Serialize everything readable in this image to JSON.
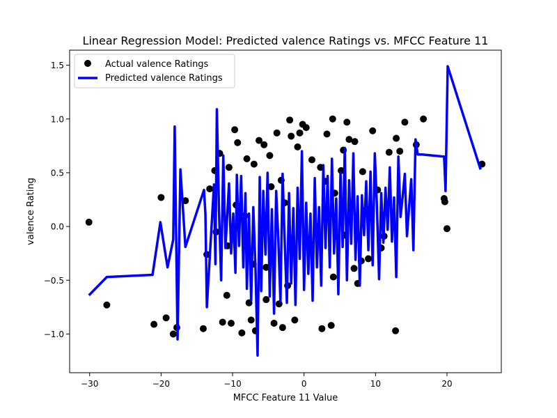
{
  "chart_data": {
    "type": "scatter",
    "title": "Linear Regression Model: Predicted valence Ratings vs. MFCC Feature 11",
    "xlabel": "MFCC Feature 11 Value",
    "ylabel": "valence Rating",
    "xlim": [
      -32.8,
      27.6
    ],
    "ylim": [
      -1.36,
      1.64
    ],
    "xticks": [
      -30,
      -20,
      -10,
      0,
      10,
      20
    ],
    "yticks": [
      -1.0,
      -0.5,
      0.0,
      0.5,
      1.0,
      1.5
    ],
    "xtick_labels": [
      "−30",
      "−20",
      "−10",
      "0",
      "10",
      "20"
    ],
    "ytick_labels": [
      "−1.0",
      "−0.5",
      "0.0",
      "0.5",
      "1.0",
      "1.5"
    ],
    "grid": false,
    "legend_position": "top-left",
    "legend": [
      "Actual valence Ratings",
      "Predicted valence Ratings"
    ],
    "colors": {
      "actual": "#000000",
      "predicted": "#0000ff"
    },
    "series": [
      {
        "name": "Actual valence Ratings",
        "kind": "scatter",
        "x": [
          -30.1,
          -27.6,
          -20.0,
          -21.0,
          -19.3,
          -18.3,
          -17.8,
          -16.6,
          -14.1,
          -13.6,
          -12.5,
          -12.3,
          -11.8,
          -11.4,
          -10.7,
          -10.5,
          -10.2,
          -9.7,
          -9.3,
          -8.7,
          -8.3,
          -8.0,
          -7.7,
          -7.4,
          -7.1,
          -6.8,
          -6.3,
          -5.6,
          -5.3,
          -4.6,
          -4.2,
          -3.8,
          -3.5,
          -3.0,
          -2.7,
          -2.3,
          -1.8,
          -1.3,
          -0.9,
          -0.6,
          -0.2,
          0.3,
          0.7,
          1.1,
          1.8,
          2.3,
          3.2,
          3.8,
          4.0,
          4.3,
          5.2,
          5.7,
          6.3,
          7.0,
          7.1,
          7.5,
          8.2,
          8.8,
          9.6,
          10.3,
          11.2,
          11.9,
          12.8,
          13.4,
          14.1,
          15.7,
          16.7,
          19.6,
          19.7,
          20.0,
          24.9,
          -5.3,
          -2.0,
          2.5,
          6.0,
          9.0,
          -13.2,
          -9.5,
          -7.0,
          3.0,
          12.9,
          4.1,
          -10.8,
          1.0,
          -4.8,
          5.5,
          -1.4,
          8.0,
          -3.2,
          10.8
        ],
        "y": [
          0.04,
          -0.73,
          0.27,
          -0.91,
          -0.85,
          -1.0,
          -0.94,
          0.24,
          -0.95,
          -0.26,
          0.52,
          -0.05,
          0.68,
          -0.89,
          -0.18,
          0.55,
          -0.9,
          0.9,
          0.78,
          -0.99,
          0.1,
          0.63,
          -0.71,
          -0.87,
          -0.35,
          -0.97,
          0.8,
          0.76,
          -0.68,
          0.37,
          -0.9,
          0.87,
          -0.72,
          -0.94,
          0.22,
          -0.55,
          0.84,
          -0.87,
          0.74,
          0.87,
          0.95,
          0.92,
          -0.14,
          0.62,
          0.0,
          0.55,
          0.86,
          -0.92,
          1.0,
          0.31,
          0.52,
          -0.08,
          0.81,
          -0.39,
          0.79,
          -0.53,
          0.51,
          0.16,
          0.89,
          0.34,
          -0.09,
          0.69,
          -0.97,
          0.7,
          0.97,
          0.76,
          1.0,
          0.26,
          0.23,
          -0.02,
          0.58,
          -0.38,
          0.99,
          -0.95,
          0.97,
          -0.3,
          0.35,
          0.2,
          0.58,
          0.42,
          0.82,
          -0.47,
          -0.64,
          -0.17,
          0.66,
          0.71,
          -0.25,
          -0.32,
          0.43,
          -0.2
        ]
      },
      {
        "name": "Predicted valence Ratings",
        "kind": "line",
        "x": [
          -30.1,
          -27.6,
          -21.2,
          -20.1,
          -19.1,
          -18.3,
          -18.1,
          -17.7,
          -17.3,
          -16.6,
          -14.0,
          -13.8,
          -13.6,
          -12.6,
          -12.4,
          -12.2,
          -11.9,
          -11.6,
          -11.3,
          -11.0,
          -10.5,
          -10.2,
          -9.9,
          -9.6,
          -9.4,
          -9.1,
          -8.8,
          -8.5,
          -8.2,
          -8.0,
          -7.7,
          -7.4,
          -7.1,
          -6.8,
          -6.5,
          -6.2,
          -6.0,
          -5.7,
          -5.4,
          -5.1,
          -4.8,
          -4.5,
          -4.2,
          -3.9,
          -3.6,
          -3.3,
          -3.0,
          -2.7,
          -2.4,
          -2.1,
          -1.8,
          -1.5,
          -1.2,
          -0.9,
          -0.6,
          -0.3,
          0.0,
          0.3,
          0.6,
          0.9,
          1.2,
          1.5,
          1.8,
          2.1,
          2.4,
          2.7,
          3.0,
          3.3,
          3.6,
          3.9,
          4.2,
          4.5,
          4.8,
          5.1,
          5.4,
          5.7,
          6.0,
          6.3,
          6.6,
          6.9,
          7.2,
          7.5,
          7.8,
          8.1,
          8.4,
          8.7,
          9.0,
          9.3,
          9.6,
          9.9,
          10.2,
          10.5,
          10.8,
          11.1,
          11.4,
          11.7,
          12.0,
          12.3,
          12.6,
          12.9,
          13.2,
          13.5,
          13.8,
          14.1,
          14.4,
          14.7,
          15.0,
          15.3,
          15.6,
          15.9,
          16.2,
          16.5,
          19.6,
          19.8,
          20.1,
          24.7
        ],
        "y": [
          -0.64,
          -0.47,
          -0.45,
          0.04,
          -0.38,
          -0.12,
          0.93,
          -1.05,
          0.53,
          -0.19,
          0.34,
          0.12,
          -0.75,
          0.39,
          -0.35,
          1.09,
          0.15,
          -0.5,
          0.66,
          -0.2,
          0.4,
          -0.25,
          0.12,
          -0.43,
          0.48,
          -0.18,
          0.47,
          -0.38,
          0.31,
          -0.58,
          0.12,
          -0.69,
          0.18,
          -0.38,
          -1.2,
          0.46,
          -0.6,
          0.33,
          -0.26,
          0.5,
          -0.65,
          0.16,
          -0.81,
          0.33,
          -0.12,
          -0.7,
          0.49,
          -0.15,
          -0.71,
          0.31,
          -0.53,
          0.17,
          -0.73,
          0.36,
          -0.3,
          0.7,
          -0.59,
          0.22,
          -0.44,
          0.12,
          -0.69,
          0.45,
          -0.38,
          0.18,
          -0.55,
          0.57,
          -0.2,
          0.47,
          -0.38,
          0.63,
          -0.25,
          0.26,
          -0.63,
          0.5,
          -0.19,
          0.73,
          -0.5,
          0.43,
          -0.16,
          0.68,
          -0.31,
          0.28,
          -0.55,
          0.29,
          -0.08,
          0.42,
          -0.22,
          0.51,
          -0.36,
          0.68,
          0.18,
          -0.49,
          0.31,
          -0.15,
          0.36,
          -0.03,
          0.55,
          -0.14,
          0.27,
          -0.47,
          0.65,
          0.09,
          0.28,
          0.49,
          -0.09,
          0.18,
          0.44,
          -0.22,
          0.81,
          0.67,
          0.67,
          0.67,
          0.65,
          0.33,
          1.49,
          0.53
        ]
      }
    ]
  }
}
